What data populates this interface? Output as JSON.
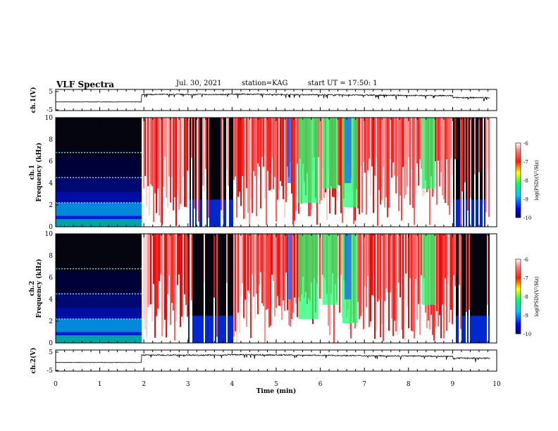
{
  "header": {
    "title": "VLF Spectra",
    "date": "Jul. 30, 2021",
    "station": "station=KAG",
    "start": "start UT =  17:50: 1"
  },
  "chart_data": {
    "type": "heatmap",
    "x_axis": {
      "label": "Time (min)",
      "range": [
        0,
        10
      ],
      "ticks": [
        "0",
        "1",
        "2",
        "3",
        "4",
        "5",
        "6",
        "7",
        "8",
        "9",
        "10"
      ]
    },
    "panels": [
      {
        "id": "ch1-voltage",
        "type": "line",
        "ylabel": "ch.1(V)",
        "ylim": [
          -5,
          5
        ],
        "yticks": [
          "5",
          "-5"
        ]
      },
      {
        "id": "ch1-spectrogram",
        "type": "heatmap",
        "ylabel": "ch.1 Frequency (kHz)",
        "ylim": [
          0,
          10
        ],
        "yticks": [
          "0",
          "2",
          "4",
          "6",
          "8",
          "10"
        ],
        "colorbar": {
          "label": "log(PSD)(V²/Hz)",
          "range": [
            -10,
            -6
          ],
          "ticks": [
            "-6",
            "-7",
            "-8",
            "-9",
            "-10"
          ]
        }
      },
      {
        "id": "ch2-spectrogram",
        "type": "heatmap",
        "ylabel": "ch.2 Frequency (kHz)",
        "ylim": [
          0,
          10
        ],
        "yticks": [
          "0",
          "2",
          "4",
          "6",
          "8",
          "10"
        ],
        "colorbar": {
          "label": "log(PSD)(V²/Hz)",
          "range": [
            -10,
            -6
          ],
          "ticks": [
            "-6",
            "-7",
            "-8",
            "-9",
            "-10"
          ]
        }
      },
      {
        "id": "ch2-voltage",
        "type": "line",
        "ylabel": "ch.2(V)",
        "ylim": [
          -5,
          5
        ],
        "yticks": [
          "5",
          "-5"
        ]
      }
    ],
    "segments_min": [
      {
        "t0": 0.0,
        "t1": 1.95,
        "state": "quiet"
      },
      {
        "t0": 1.95,
        "t1": 2.98,
        "state": "saturated"
      },
      {
        "t0": 2.98,
        "t1": 4.0,
        "state": "mixed"
      },
      {
        "t0": 4.0,
        "t1": 8.98,
        "state": "saturated"
      },
      {
        "t0": 8.98,
        "t1": 9.85,
        "state": "mixed"
      }
    ]
  }
}
